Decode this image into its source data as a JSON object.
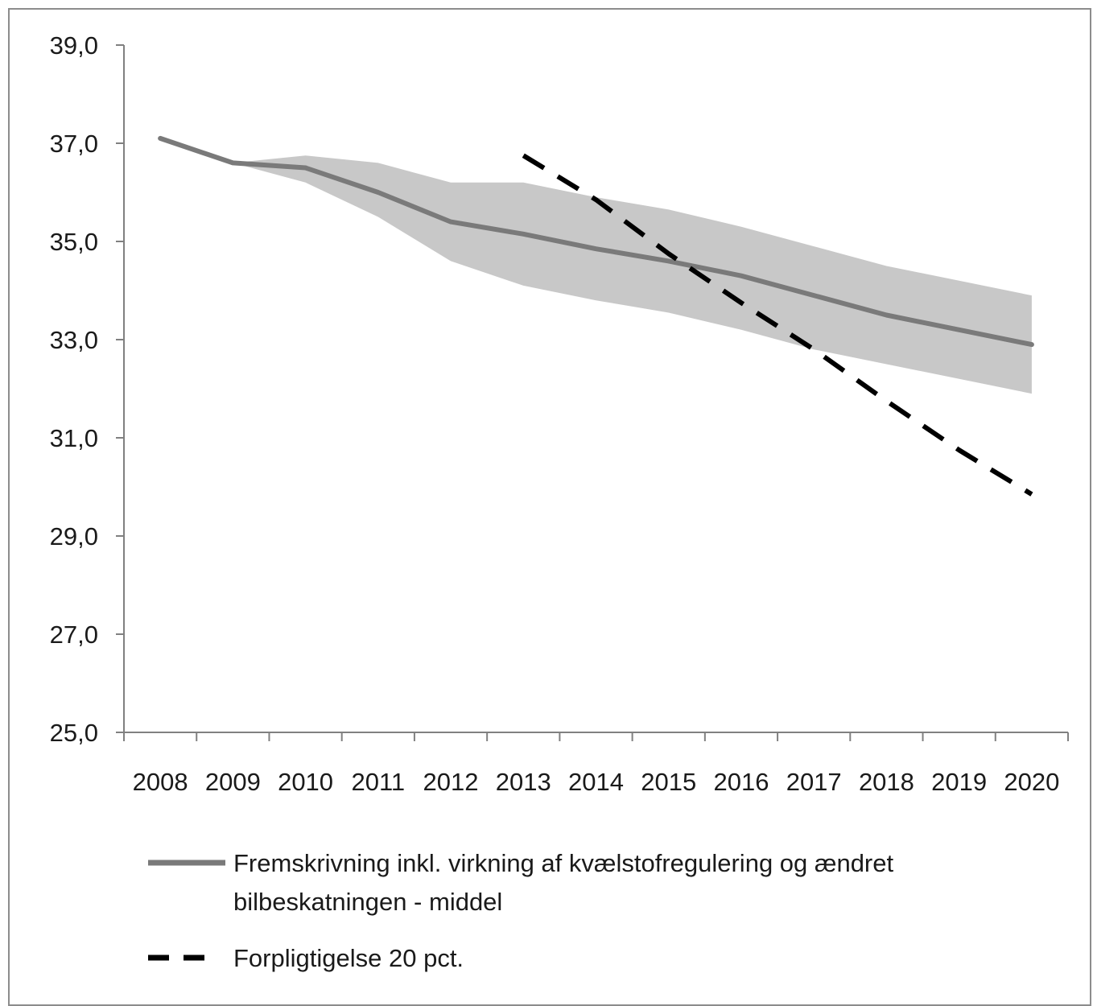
{
  "chart_data": {
    "type": "line",
    "x": [
      "2008",
      "2009",
      "2010",
      "2011",
      "2012",
      "2013",
      "2014",
      "2015",
      "2016",
      "2017",
      "2018",
      "2019",
      "2020"
    ],
    "ylim": [
      25.0,
      39.0
    ],
    "yticks": [
      "25,0",
      "27,0",
      "29,0",
      "31,0",
      "33,0",
      "35,0",
      "37,0",
      "39,0"
    ],
    "grid": false,
    "legend_position": "bottom",
    "band": {
      "color": "#c8c8c8",
      "upper": [
        37.1,
        36.6,
        36.75,
        36.6,
        36.2,
        36.2,
        35.9,
        35.65,
        35.3,
        34.9,
        34.5,
        34.2,
        33.9
      ],
      "lower": [
        37.1,
        36.6,
        36.2,
        35.5,
        34.6,
        34.1,
        33.8,
        33.55,
        33.2,
        32.8,
        32.5,
        32.2,
        31.9
      ]
    },
    "series": [
      {
        "name": "Fremskrivning inkl. virkning af kvælstofregulering og ændret bilbeskatningen - middel",
        "style": "solid",
        "color": "#7a7a7a",
        "values": [
          37.1,
          36.6,
          36.5,
          36.0,
          35.4,
          35.15,
          34.85,
          34.6,
          34.3,
          33.9,
          33.5,
          33.2,
          32.9
        ]
      },
      {
        "name": "Forpligtigelse 20 pct.",
        "style": "dashed",
        "color": "#000000",
        "values": [
          null,
          null,
          null,
          null,
          null,
          36.75,
          35.85,
          34.75,
          33.75,
          32.8,
          31.75,
          30.75,
          29.85
        ]
      }
    ]
  },
  "legend": {
    "solid_line_1": "Fremskrivning inkl. virkning af kvælstofregulering og ændret",
    "solid_line_2": "bilbeskatningen - middel",
    "dashed": "Forpligtigelse 20 pct."
  }
}
